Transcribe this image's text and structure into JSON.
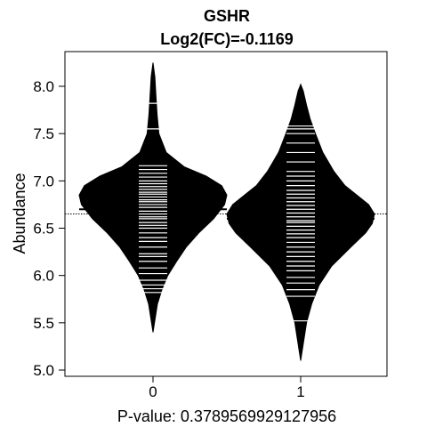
{
  "chart_data": {
    "type": "beanplot",
    "title": "GSHR",
    "subtitle": "Log2(FC)=-0.1169",
    "xlabel": "P-value: 0.378956992912795​6",
    "ylabel": "Abundance",
    "categories": [
      "0",
      "1"
    ],
    "ylim": [
      4.97,
      8.33
    ],
    "yticks": [
      "5.0",
      "5.5",
      "6.0",
      "6.5",
      "7.0",
      "7.5",
      "8.0"
    ],
    "overall_mean": 6.65,
    "groups": [
      {
        "name": "0",
        "mean": 6.7,
        "ymin": 5.4,
        "ymax": 8.25,
        "density": [
          [
            5.4,
            0.0
          ],
          [
            5.55,
            0.03
          ],
          [
            5.7,
            0.06
          ],
          [
            5.85,
            0.12
          ],
          [
            6.0,
            0.2
          ],
          [
            6.15,
            0.32
          ],
          [
            6.3,
            0.45
          ],
          [
            6.45,
            0.62
          ],
          [
            6.6,
            0.82
          ],
          [
            6.75,
            0.97
          ],
          [
            6.85,
            1.0
          ],
          [
            6.95,
            0.93
          ],
          [
            7.05,
            0.72
          ],
          [
            7.15,
            0.42
          ],
          [
            7.3,
            0.18
          ],
          [
            7.5,
            0.08
          ],
          [
            7.7,
            0.055
          ],
          [
            7.9,
            0.04
          ],
          [
            8.1,
            0.025
          ],
          [
            8.25,
            0.0
          ]
        ],
        "observations": [
          5.82,
          5.86,
          5.9,
          5.95,
          6.02,
          6.08,
          6.15,
          6.2,
          6.23,
          6.3,
          6.36,
          6.4,
          6.45,
          6.5,
          6.53,
          6.56,
          6.6,
          6.62,
          6.65,
          6.68,
          6.7,
          6.72,
          6.75,
          6.78,
          6.8,
          6.83,
          6.86,
          6.88,
          6.91,
          6.94,
          6.97,
          7.0,
          7.04,
          7.08,
          7.12,
          7.16,
          7.55,
          7.82
        ]
      },
      {
        "name": "1",
        "mean": 6.6,
        "ymin": 5.1,
        "ymax": 8.02,
        "density": [
          [
            5.1,
            0.0
          ],
          [
            5.3,
            0.04
          ],
          [
            5.5,
            0.08
          ],
          [
            5.7,
            0.15
          ],
          [
            5.9,
            0.25
          ],
          [
            6.1,
            0.42
          ],
          [
            6.3,
            0.68
          ],
          [
            6.45,
            0.88
          ],
          [
            6.55,
            0.97
          ],
          [
            6.65,
            1.0
          ],
          [
            6.75,
            0.92
          ],
          [
            6.85,
            0.76
          ],
          [
            6.95,
            0.6
          ],
          [
            7.1,
            0.45
          ],
          [
            7.3,
            0.3
          ],
          [
            7.5,
            0.2
          ],
          [
            7.65,
            0.13
          ],
          [
            7.8,
            0.08
          ],
          [
            7.95,
            0.035
          ],
          [
            8.02,
            0.0
          ]
        ],
        "observations": [
          5.52,
          5.78,
          5.85,
          5.92,
          5.98,
          6.05,
          6.1,
          6.15,
          6.2,
          6.25,
          6.3,
          6.35,
          6.4,
          6.44,
          6.48,
          6.52,
          6.56,
          6.58,
          6.62,
          6.66,
          6.7,
          6.74,
          6.78,
          6.82,
          6.86,
          6.9,
          6.95,
          7.0,
          7.05,
          7.1,
          7.2,
          7.3,
          7.4,
          7.5,
          7.55,
          7.58
        ]
      }
    ]
  }
}
